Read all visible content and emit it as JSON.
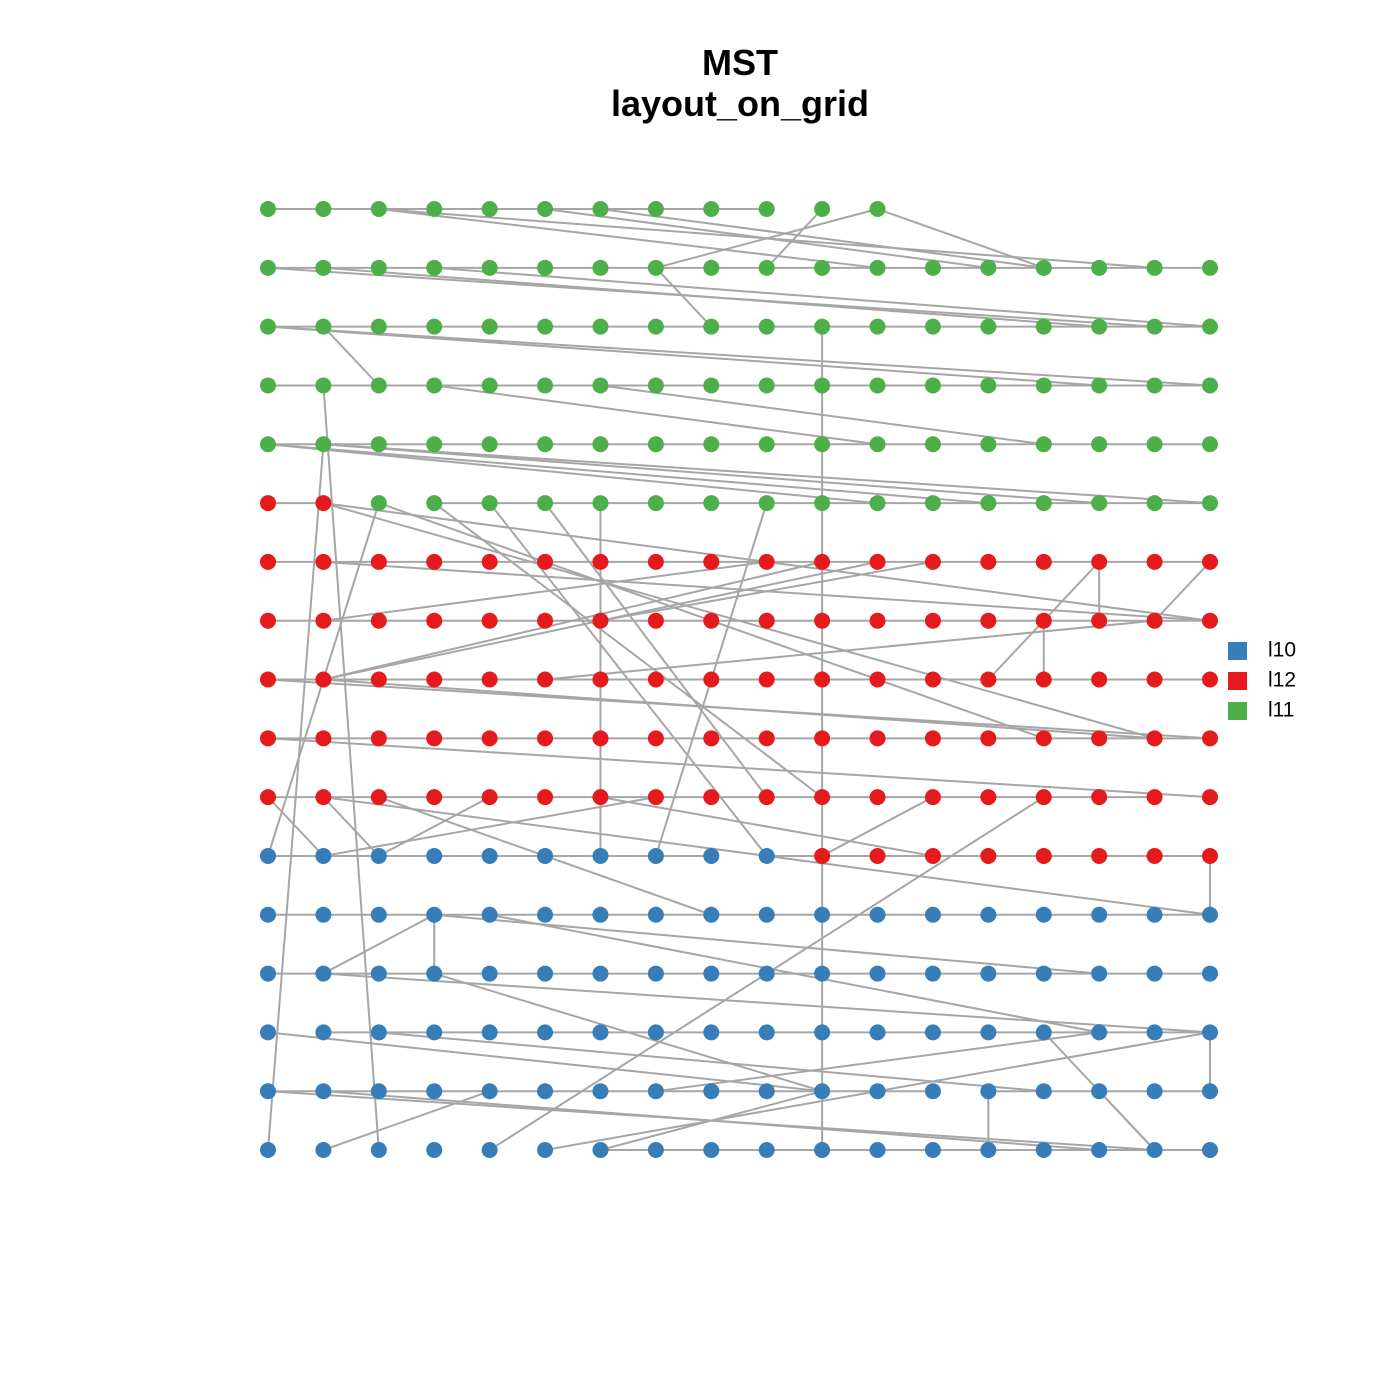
{
  "title": {
    "line1": "MST",
    "line2": "layout_on_grid"
  },
  "legend": [
    {
      "label": "l10",
      "color": "#377eb8"
    },
    {
      "label": "l12",
      "color": "#e41a1c"
    },
    {
      "label": "l11",
      "color": "#4daf4a"
    }
  ]
}
